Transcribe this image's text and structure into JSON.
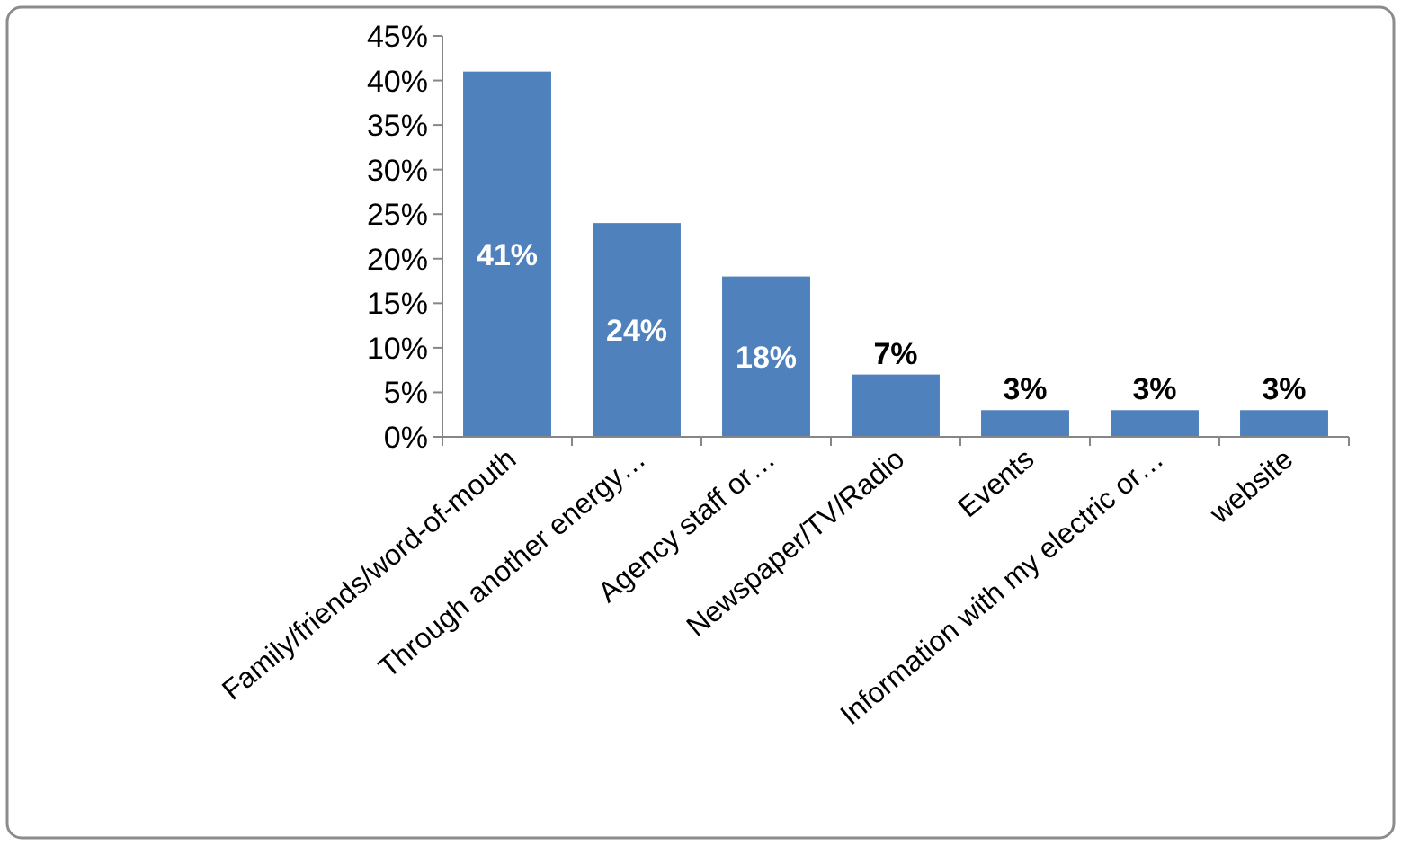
{
  "chart_data": {
    "type": "bar",
    "categories": [
      "Family/friends/word-of-mouth",
      "Through another energy…",
      "Agency staff or…",
      "Newspaper/TV/Radio",
      "Events",
      "Information with my electric or…",
      "website"
    ],
    "values": [
      41,
      24,
      18,
      7,
      3,
      3,
      3
    ],
    "color": "#4f81bd",
    "value_labels": [
      "41%",
      "24%",
      "18%",
      "7%",
      "3%",
      "3%",
      "3%"
    ],
    "ylim": [
      0,
      45
    ],
    "yticks": [
      {
        "value": 0,
        "label": "0%"
      },
      {
        "value": 5,
        "label": "5%"
      },
      {
        "value": 10,
        "label": "10%"
      },
      {
        "value": 15,
        "label": "15%"
      },
      {
        "value": 20,
        "label": "20%"
      },
      {
        "value": 25,
        "label": "25%"
      },
      {
        "value": 30,
        "label": "30%"
      },
      {
        "value": 35,
        "label": "35%"
      },
      {
        "value": 40,
        "label": "40%"
      },
      {
        "value": 45,
        "label": "45%"
      }
    ]
  }
}
